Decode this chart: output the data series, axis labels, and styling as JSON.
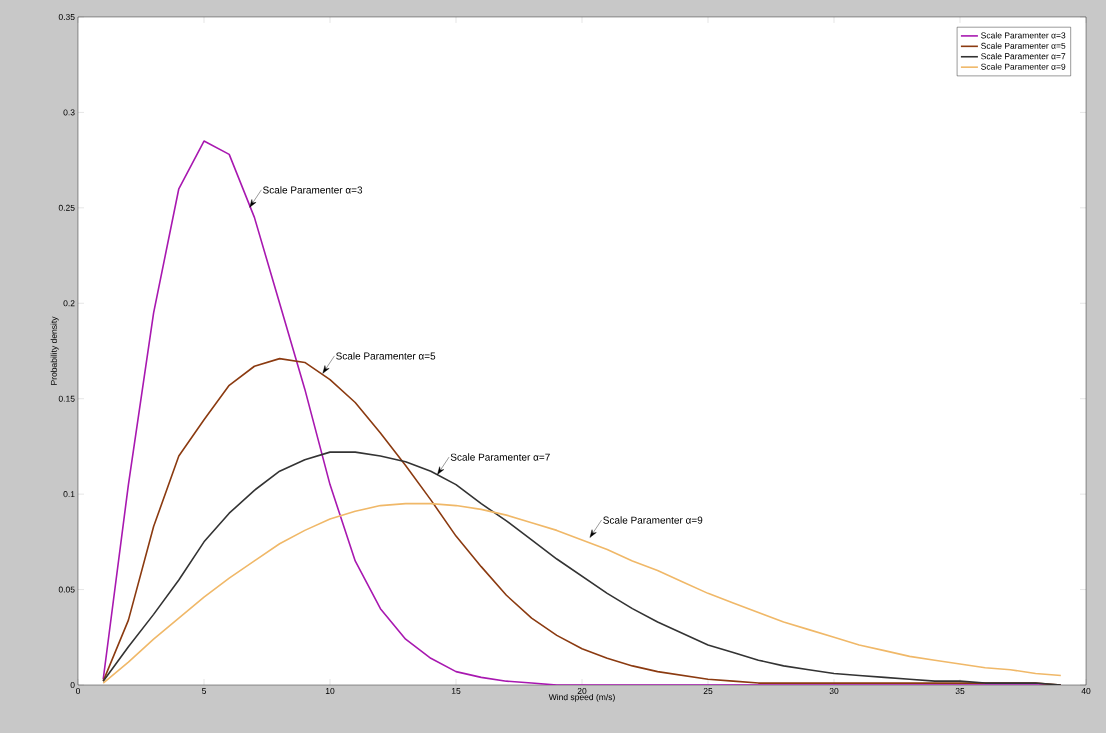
{
  "chart_data": {
    "type": "line",
    "xlabel": "Wind speed (m/s)",
    "ylabel": "Probability density",
    "x": [
      1,
      2,
      3,
      4,
      5,
      6,
      7,
      8,
      9,
      10,
      11,
      12,
      13,
      14,
      15,
      16,
      17,
      18,
      19,
      20,
      21,
      22,
      23,
      24,
      25,
      26,
      27,
      28,
      29,
      30,
      31,
      32,
      33,
      34,
      35,
      36,
      37,
      38,
      39
    ],
    "series": [
      {
        "name": "Scale Paramenter α=3",
        "color": "#a818b0",
        "values": [
          0.003,
          0.105,
          0.195,
          0.26,
          0.285,
          0.278,
          0.245,
          0.2,
          0.155,
          0.105,
          0.065,
          0.04,
          0.024,
          0.014,
          0.007,
          0.004,
          0.002,
          0.001,
          0,
          0,
          0,
          0,
          0,
          0,
          0,
          0,
          0,
          0,
          0,
          0,
          0,
          0,
          0,
          0,
          0,
          0,
          0,
          0,
          0
        ]
      },
      {
        "name": "Scale Paramenter α=5",
        "color": "#8b3a10",
        "values": [
          0.002,
          0.034,
          0.083,
          0.12,
          0.139,
          0.157,
          0.167,
          0.171,
          0.169,
          0.16,
          0.148,
          0.132,
          0.115,
          0.097,
          0.078,
          0.062,
          0.047,
          0.035,
          0.026,
          0.019,
          0.014,
          0.01,
          0.007,
          0.005,
          0.003,
          0.002,
          0.001,
          0.001,
          0.001,
          0.001,
          0.001,
          0.001,
          0.001,
          0.001,
          0.001,
          0.001,
          0.001,
          0.001,
          0
        ]
      },
      {
        "name": "Scale Paramenter α=7",
        "color": "#333333",
        "values": [
          0.002,
          0.02,
          0.037,
          0.055,
          0.075,
          0.09,
          0.102,
          0.112,
          0.118,
          0.122,
          0.122,
          0.12,
          0.117,
          0.112,
          0.105,
          0.095,
          0.086,
          0.076,
          0.066,
          0.057,
          0.048,
          0.04,
          0.033,
          0.027,
          0.021,
          0.017,
          0.013,
          0.01,
          0.008,
          0.006,
          0.005,
          0.004,
          0.003,
          0.002,
          0.002,
          0.001,
          0.001,
          0.001,
          0
        ]
      },
      {
        "name": "Scale Paramenter α=9",
        "color": "#f0b868",
        "values": [
          0.001,
          0.012,
          0.024,
          0.035,
          0.046,
          0.056,
          0.065,
          0.074,
          0.081,
          0.087,
          0.091,
          0.094,
          0.095,
          0.095,
          0.094,
          0.092,
          0.089,
          0.085,
          0.081,
          0.076,
          0.071,
          0.065,
          0.06,
          0.054,
          0.048,
          0.043,
          0.038,
          0.033,
          0.029,
          0.025,
          0.021,
          0.018,
          0.015,
          0.013,
          0.011,
          0.009,
          0.008,
          0.006,
          0.005
        ]
      }
    ],
    "annotations": [
      {
        "text": "Scale Paramenter α=3",
        "x": 6.8,
        "y": 0.25
      },
      {
        "text": "Scale Paramenter α=5",
        "x": 9.7,
        "y": 0.163
      },
      {
        "text": "Scale Paramenter α=7",
        "x": 14.25,
        "y": 0.11
      },
      {
        "text": "Scale Paramenter α=9",
        "x": 20.3,
        "y": 0.077
      }
    ],
    "xlim": [
      0,
      40
    ],
    "ylim": [
      0,
      0.35
    ],
    "xticks": [
      0,
      5,
      10,
      15,
      20,
      25,
      30,
      35,
      40
    ],
    "yticks": [
      0,
      0.05,
      0.1,
      0.15,
      0.2,
      0.25,
      0.3,
      0.35
    ],
    "legend": "top right",
    "grid": false
  }
}
